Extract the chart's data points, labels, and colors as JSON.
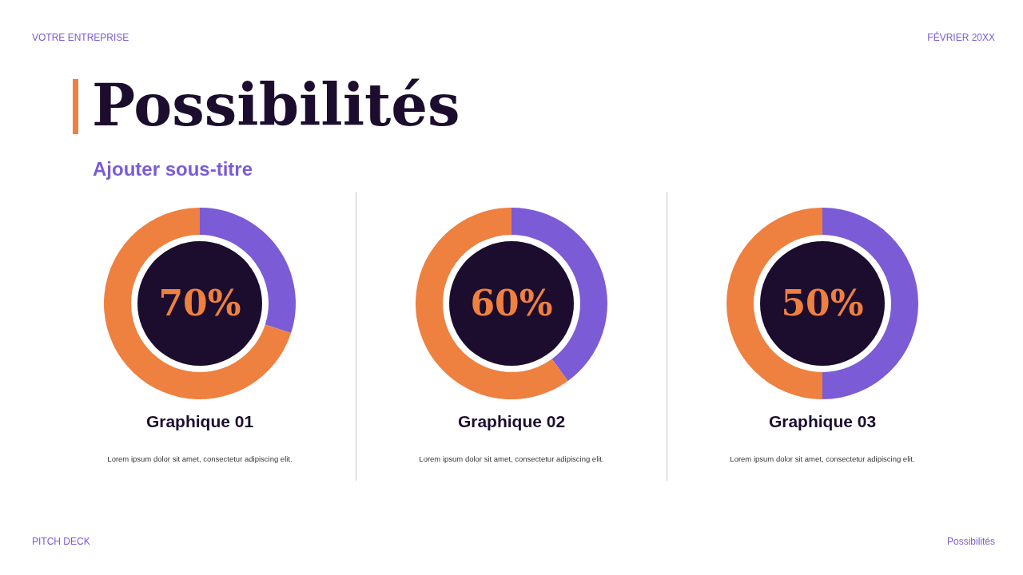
{
  "chart_data": [
    {
      "type": "other",
      "title": "Possibilités",
      "subtitle": "Ajouter sous-titre",
      "annotations": [
        "VOTRE ENTREPRISE",
        "FÉVRIER 20XX",
        "PITCH DECK",
        "Possibilités"
      ]
    },
    {
      "type": "donut",
      "title": "Graphique 01",
      "categories": [
        null,
        null
      ],
      "values": [
        30,
        70
      ],
      "colors": [
        "#7b5bd6",
        "#ee8040"
      ],
      "annotations": [
        "70%",
        "Lorem ipsum dolor sit amet, consectetur adipiscing elit."
      ]
    },
    {
      "type": "donut",
      "title": "Graphique 02",
      "categories": [
        null,
        null
      ],
      "values": [
        40,
        60
      ],
      "colors": [
        "#7b5bd6",
        "#ee8040"
      ],
      "annotations": [
        "60%",
        "Lorem ipsum dolor sit amet, consectetur adipiscing elit."
      ]
    },
    {
      "type": "donut",
      "title": "Graphique 03",
      "categories": [
        null,
        null
      ],
      "values": [
        50,
        50
      ],
      "colors": [
        "#7b5bd6",
        "#ee8040"
      ],
      "annotations": [
        "50%",
        "Lorem ipsum dolor sit amet, consectetur adipiscing elit."
      ]
    }
  ]
}
